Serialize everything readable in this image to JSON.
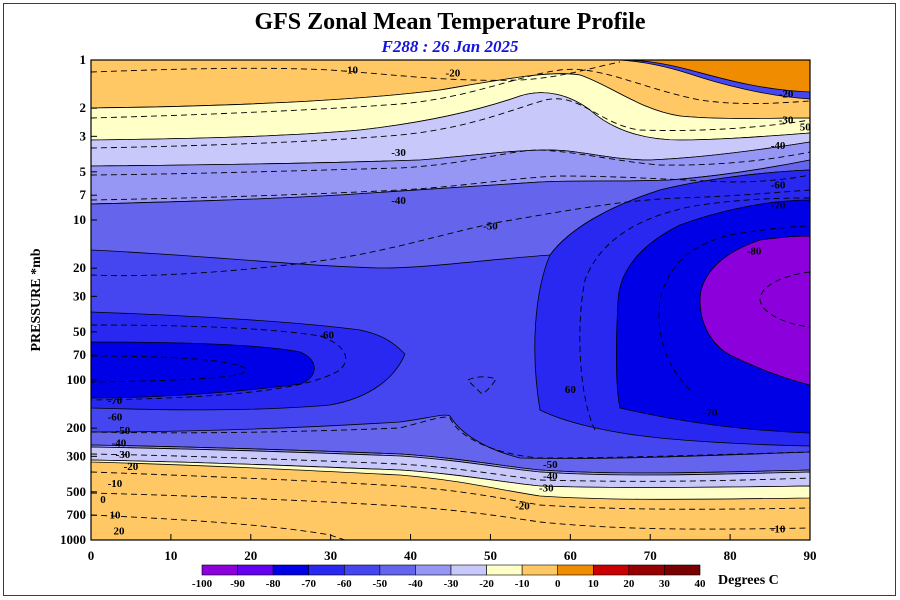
{
  "chart_data": {
    "type": "contour",
    "title": "GFS Zonal Mean Temperature Profile",
    "subtitle": "F288 : 26 Jan 2025",
    "xlabel": "",
    "ylabel": "PRESSURE *mb",
    "x_ticks": [
      0,
      10,
      20,
      30,
      40,
      50,
      60,
      70,
      80,
      90
    ],
    "xlim": [
      0,
      90
    ],
    "y_scale": "log",
    "y_inverted": true,
    "ylim": [
      1000,
      1
    ],
    "y_ticks": [
      1,
      2,
      3,
      5,
      7,
      10,
      20,
      30,
      50,
      70,
      100,
      200,
      300,
      500,
      700,
      1000
    ],
    "colorbar": {
      "unit_label": "Degrees C",
      "levels": [
        -100,
        -90,
        -80,
        -70,
        -60,
        -50,
        -40,
        -30,
        -20,
        -10,
        0,
        10,
        20,
        30,
        40
      ],
      "colors": [
        "#8c00dc",
        "#6400f0",
        "#0000e6",
        "#2828f0",
        "#4646f0",
        "#6464ec",
        "#9696f5",
        "#c8c8fa",
        "#ffffc8",
        "#ffc864",
        "#f08c00",
        "#c80000",
        "#960000",
        "#780000"
      ]
    },
    "band_colors": {
      "-80": "#8c00dc",
      "-70": "#0000e6",
      "-60": "#2828f0",
      "-50": "#4646f0",
      "-40": "#6464ec",
      "-30": "#9696f5",
      "-20": "#c8c8fa",
      "-10": "#ffffc8",
      "0": "#ffc864",
      "10": "#f08c00",
      "20": "#c80000",
      "30": "#960000"
    },
    "contour_labels": [
      {
        "text": "-10",
        "lat": 32.5,
        "p": 1.15
      },
      {
        "text": "-20",
        "lat": 45.3,
        "p": 1.2
      },
      {
        "text": "-20",
        "lat": 87.0,
        "p": 1.62
      },
      {
        "text": "-30",
        "lat": 87.0,
        "p": 2.35
      },
      {
        "text": "50",
        "lat": 89.4,
        "p": 2.6
      },
      {
        "text": "-40",
        "lat": 86.0,
        "p": 3.4
      },
      {
        "text": "-30",
        "lat": 38.5,
        "p": 3.75
      },
      {
        "text": "-60",
        "lat": 86.0,
        "p": 6.0
      },
      {
        "text": "-70",
        "lat": 86.0,
        "p": 8.0
      },
      {
        "text": "-40",
        "lat": 38.5,
        "p": 7.5
      },
      {
        "text": "-50",
        "lat": 50.0,
        "p": 10.8
      },
      {
        "text": "-80",
        "lat": 83.0,
        "p": 15.5
      },
      {
        "text": "-60",
        "lat": 29.5,
        "p": 52.0
      },
      {
        "text": "60",
        "lat": 60.0,
        "p": 114.0
      },
      {
        "text": "-70",
        "lat": 77.5,
        "p": 158.0
      },
      {
        "text": "-70",
        "lat": 3.0,
        "p": 133.0
      },
      {
        "text": "-60",
        "lat": 3.0,
        "p": 169.0
      },
      {
        "text": "-50",
        "lat": 4.0,
        "p": 205.0
      },
      {
        "text": "-40",
        "lat": 3.5,
        "p": 245.0
      },
      {
        "text": "-30",
        "lat": 4.0,
        "p": 290.0
      },
      {
        "text": "-20",
        "lat": 5.0,
        "p": 345.0
      },
      {
        "text": "-10",
        "lat": 3.0,
        "p": 440.0
      },
      {
        "text": "0",
        "lat": 1.5,
        "p": 555.0
      },
      {
        "text": "10",
        "lat": 3.0,
        "p": 695.0
      },
      {
        "text": "20",
        "lat": 3.5,
        "p": 875.0
      },
      {
        "text": "-50",
        "lat": 57.5,
        "p": 335.0
      },
      {
        "text": "-40",
        "lat": 57.5,
        "p": 395.0
      },
      {
        "text": "-30",
        "lat": 57.0,
        "p": 470.0
      },
      {
        "text": "-20",
        "lat": 54.0,
        "p": 610.0
      },
      {
        "text": "-10",
        "lat": 86.0,
        "p": 850.0
      }
    ]
  }
}
